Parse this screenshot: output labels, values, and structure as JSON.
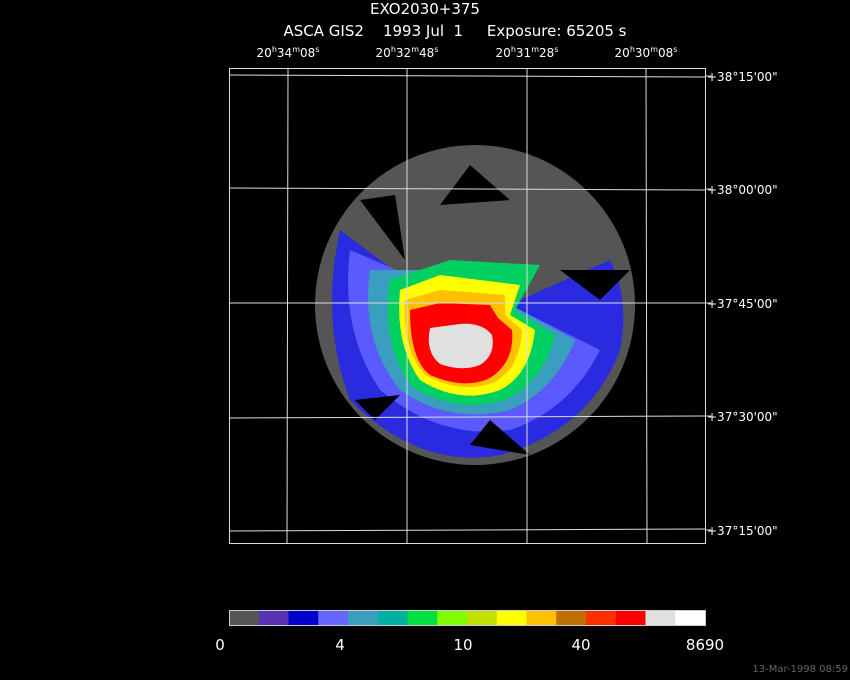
{
  "header": {
    "title": "EXO2030+375",
    "subtitle": "ASCA GIS2    1993 Jul  1     Exposure: 65205 s"
  },
  "ra_labels": [
    {
      "parts": [
        "20",
        "h",
        "34",
        "m",
        "08",
        "s"
      ]
    },
    {
      "parts": [
        "20",
        "h",
        "32",
        "m",
        "48",
        "s"
      ]
    },
    {
      "parts": [
        "20",
        "h",
        "31",
        "m",
        "28",
        "s"
      ]
    },
    {
      "parts": [
        "20",
        "h",
        "30",
        "m",
        "08",
        "s"
      ]
    }
  ],
  "dec_labels": [
    "+38°15'00\"",
    "+38°00'00\"",
    "+37°45'00\"",
    "+37°30'00\"",
    "+37°15'00\""
  ],
  "colorbar_labels": [
    "0",
    "4",
    "10",
    "40",
    "8690"
  ],
  "footer": {
    "timestamp": "13-Mar-1998 08:59"
  }
}
